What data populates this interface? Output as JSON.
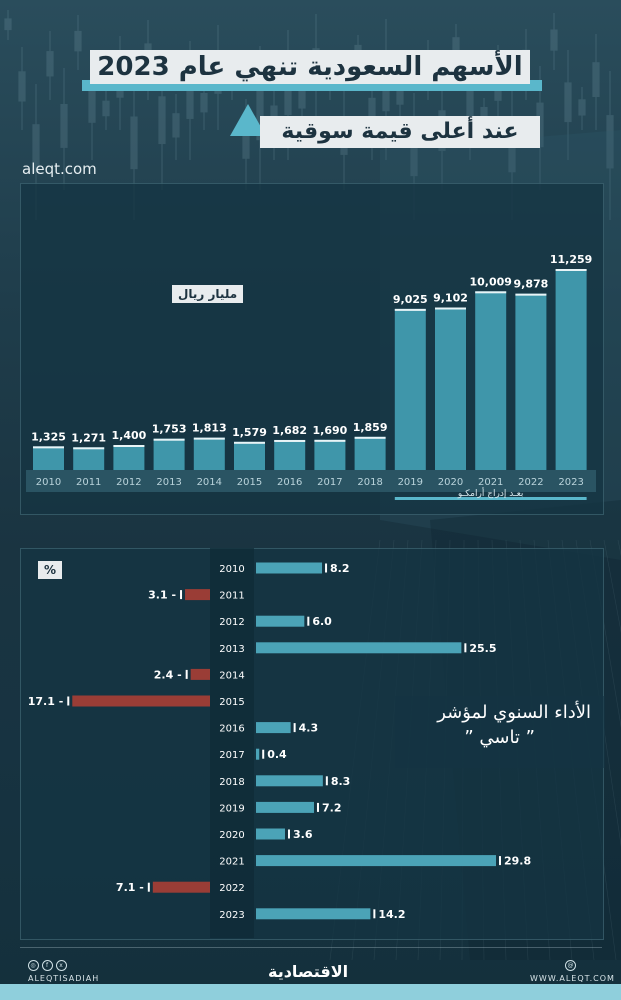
{
  "header": {
    "title_line1": "الأسهم السعودية تنهي عام 2023",
    "title_line2": "عند أعلى قيمة سوقية",
    "site": "aleqt.com"
  },
  "colors": {
    "bar_market": "#3f96aa",
    "bar_positive": "#4ba3b7",
    "bar_negative": "#9a3d36",
    "accent": "#5ab7cb"
  },
  "chart_data": [
    {
      "type": "bar",
      "unit_label": "مليار ريال",
      "categories": [
        "2010",
        "2011",
        "2012",
        "2013",
        "2014",
        "2015",
        "2016",
        "2017",
        "2018",
        "2019",
        "2020",
        "2021",
        "2022",
        "2023"
      ],
      "values": [
        1325,
        1271,
        1400,
        1753,
        1813,
        1579,
        1682,
        1690,
        1859,
        9025,
        9102,
        10009,
        9878,
        11259
      ],
      "value_labels": [
        "1,325",
        "1,271",
        "1,400",
        "1,753",
        "1,813",
        "1,579",
        "1,682",
        "1,690",
        "1,859",
        "9,025",
        "9,102",
        "10,009",
        "9,878",
        "11,259"
      ],
      "annotation": "بعـد إدراج أرامكـو",
      "ylim": [
        0,
        11259
      ]
    },
    {
      "type": "bar",
      "orientation": "horizontal",
      "unit_label": "%",
      "title": "الأداء السنوي لمؤشر",
      "subtitle": "” تاسي ”",
      "categories": [
        "2010",
        "2011",
        "2012",
        "2013",
        "2014",
        "2015",
        "2016",
        "2017",
        "2018",
        "2019",
        "2020",
        "2021",
        "2022",
        "2023"
      ],
      "values": [
        8.2,
        -3.1,
        6.0,
        25.5,
        -2.4,
        -17.1,
        4.3,
        0.4,
        8.3,
        7.2,
        3.6,
        29.8,
        -7.1,
        14.2
      ],
      "value_labels": [
        "8.2",
        "3.1 -",
        "6.0",
        "25.5",
        "2.4 -",
        "17.1 -",
        "4.3",
        "0.4",
        "8.3",
        "7.2",
        "3.6",
        "29.8",
        "7.1 -",
        "14.2"
      ]
    }
  ],
  "footer": {
    "handle": "ALEQTISADIAH",
    "logo": "الاقتصادية",
    "site": "WWW.ALEQT.COM",
    "social_icons": [
      "instagram-icon",
      "facebook-icon",
      "x-icon"
    ],
    "web_icon": "globe-icon"
  }
}
